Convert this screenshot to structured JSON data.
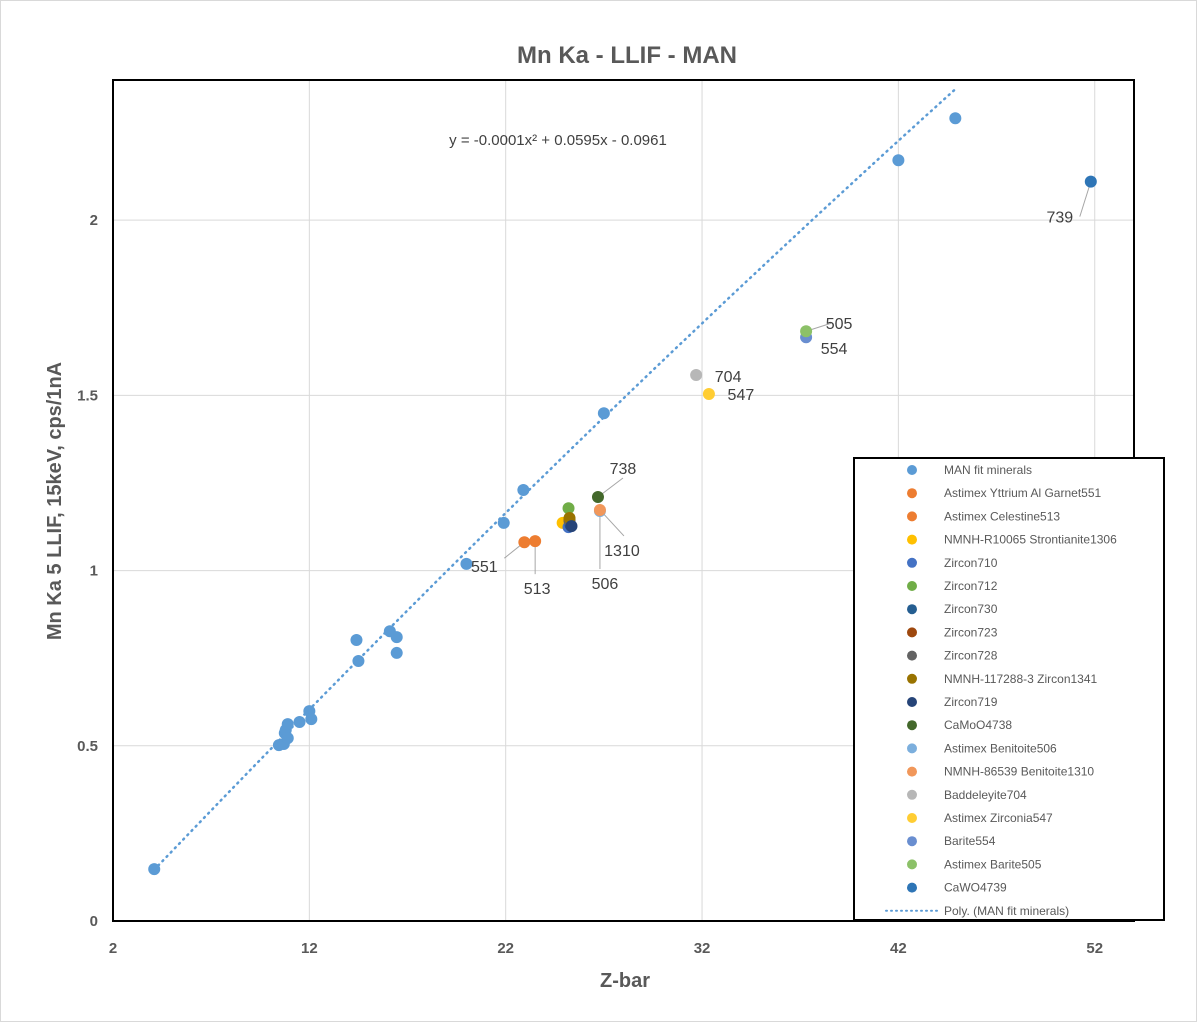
{
  "chart_data": {
    "type": "scatter",
    "title": "Mn Ka - LLIF - MAN",
    "xlabel": "Z-bar",
    "ylabel": "Mn Ka 5 LLIF, 15keV, cps/1nA",
    "xlim": [
      2,
      54
    ],
    "ylim": [
      0,
      2.4
    ],
    "x_ticks": [
      "2",
      "12",
      "22",
      "32",
      "42",
      "52"
    ],
    "x_tick_values": [
      2,
      12,
      22,
      32,
      42,
      52
    ],
    "y_ticks": [
      "0",
      "0.5",
      "1",
      "1.5",
      "2"
    ],
    "y_tick_values": [
      0,
      0.5,
      1,
      1.5,
      2
    ],
    "grid": true,
    "legend_position": "bottom-right",
    "trendline": {
      "name": "Poly. (MAN fit minerals)",
      "type": "polynomial",
      "order": 2,
      "coefficients": {
        "a": -0.0001,
        "b": 0.0595,
        "c": -0.0961
      },
      "equation": "y = -0.0001x² + 0.0595x - 0.0961",
      "x_range": [
        4.1,
        44.9
      ],
      "color": "#5b9bd5"
    },
    "series": [
      {
        "name": "MAN fit minerals",
        "color": "#5b9bd5",
        "label": "",
        "points": [
          [
            4.1,
            0.148
          ],
          [
            10.45,
            0.502
          ],
          [
            10.7,
            0.505
          ],
          [
            10.75,
            0.536
          ],
          [
            10.8,
            0.545
          ],
          [
            10.9,
            0.522
          ],
          [
            10.9,
            0.562
          ],
          [
            11.5,
            0.568
          ],
          [
            12.0,
            0.599
          ],
          [
            12.1,
            0.576
          ],
          [
            14.4,
            0.802
          ],
          [
            14.5,
            0.742
          ],
          [
            16.1,
            0.827
          ],
          [
            16.45,
            0.81
          ],
          [
            16.45,
            0.765
          ],
          [
            20.0,
            1.019
          ],
          [
            21.9,
            1.136
          ],
          [
            22.9,
            1.23
          ],
          [
            27.0,
            1.449
          ],
          [
            42.0,
            2.171
          ],
          [
            44.9,
            2.291
          ]
        ]
      },
      {
        "name": "Astimex Yttrium Al Garnet551",
        "color": "#ed7d31",
        "label": "551",
        "points": [
          [
            22.95,
            1.081
          ]
        ]
      },
      {
        "name": "Astimex Celestine513",
        "color": "#ed7d31",
        "label": "513",
        "points": [
          [
            23.5,
            1.084
          ]
        ]
      },
      {
        "name": "NMNH-R10065 Strontianite1306",
        "color": "#ffc000",
        "label": "",
        "points": [
          [
            24.9,
            1.136
          ]
        ]
      },
      {
        "name": "Zircon710",
        "color": "#4472c4",
        "label": "",
        "points": [
          [
            25.2,
            1.124
          ]
        ]
      },
      {
        "name": "Zircon712",
        "color": "#70ad47",
        "label": "",
        "points": [
          [
            25.2,
            1.178
          ]
        ]
      },
      {
        "name": "Zircon730",
        "color": "#255e91",
        "label": "",
        "points": [
          [
            25.3,
            1.13
          ]
        ]
      },
      {
        "name": "Zircon723",
        "color": "#9e480e",
        "label": "",
        "points": [
          [
            25.25,
            1.145
          ]
        ]
      },
      {
        "name": "Zircon728",
        "color": "#636363",
        "label": "",
        "points": [
          [
            25.25,
            1.142
          ]
        ]
      },
      {
        "name": "NMNH-117288-3 Zircon1341",
        "color": "#997300",
        "label": "",
        "points": [
          [
            25.25,
            1.15
          ]
        ]
      },
      {
        "name": "Zircon719",
        "color": "#264478",
        "label": "",
        "points": [
          [
            25.35,
            1.127
          ]
        ]
      },
      {
        "name": "CaMoO4738",
        "color": "#43682b",
        "label": "738",
        "points": [
          [
            26.7,
            1.21
          ]
        ]
      },
      {
        "name": "Astimex Benitoite506",
        "color": "#7cafdd",
        "label": "506",
        "points": [
          [
            26.8,
            1.17
          ]
        ]
      },
      {
        "name": "NMNH-86539 Benitoite1310",
        "color": "#f1975a",
        "label": "1310",
        "points": [
          [
            26.8,
            1.173
          ]
        ]
      },
      {
        "name": "Baddeleyite704",
        "color": "#b7b7b7",
        "label": "704",
        "points": [
          [
            31.7,
            1.558
          ]
        ]
      },
      {
        "name": "Astimex Zirconia547",
        "color": "#ffcd33",
        "label": "547",
        "points": [
          [
            32.35,
            1.504
          ]
        ]
      },
      {
        "name": "Barite554",
        "color": "#698ed0",
        "label": "554",
        "points": [
          [
            37.3,
            1.666
          ]
        ]
      },
      {
        "name": "Astimex Barite505",
        "color": "#8cc168",
        "label": "505",
        "points": [
          [
            37.3,
            1.683
          ]
        ]
      },
      {
        "name": "CaWO4739",
        "color": "#2e75b6",
        "label": "739",
        "points": [
          [
            51.8,
            2.11
          ]
        ]
      }
    ]
  }
}
